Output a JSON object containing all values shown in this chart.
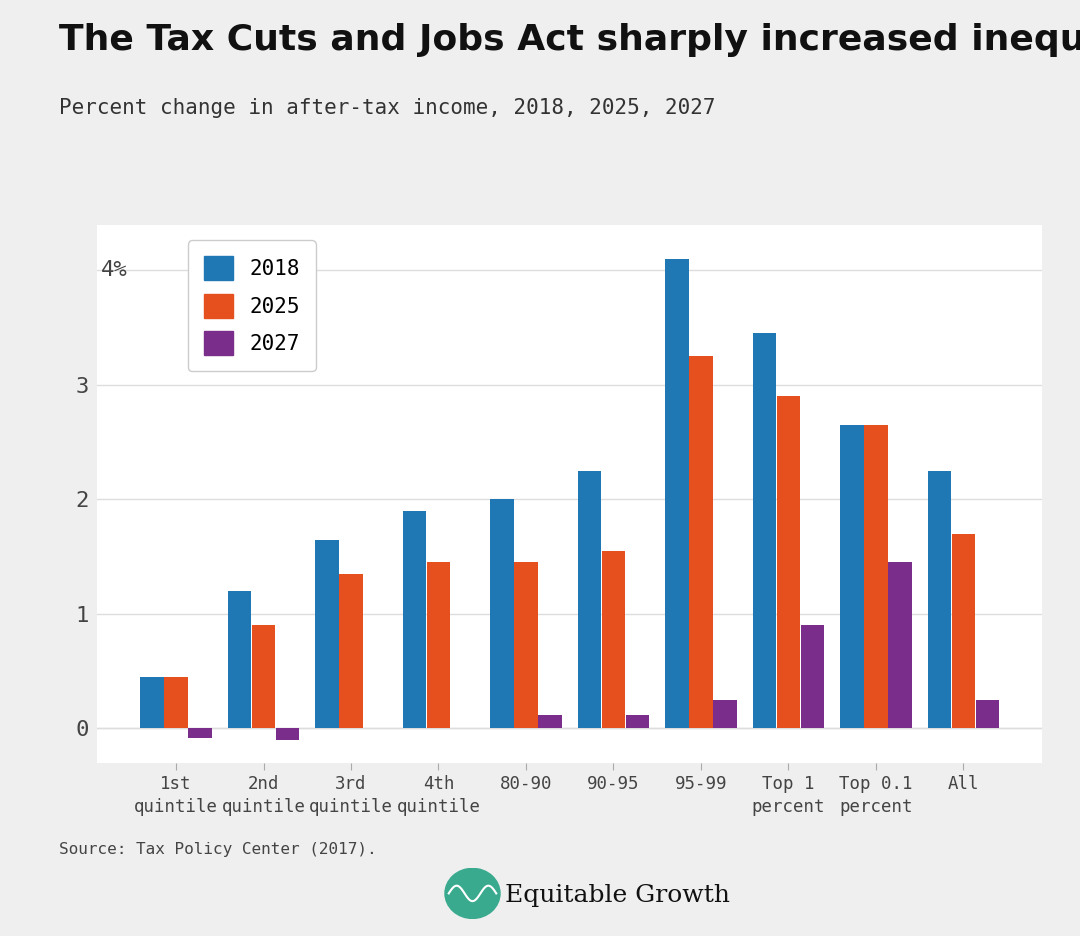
{
  "title": "The Tax Cuts and Jobs Act sharply increased inequality",
  "subtitle": "Percent change in after-tax income, 2018, 2025, 2027",
  "source": "Source: Tax Policy Center (2017).",
  "categories": [
    "1st\nquintile",
    "2nd\nquintile",
    "3rd\nquintile",
    "4th\nquintile",
    "80-90",
    "90-95",
    "95-99",
    "Top 1\npercent",
    "Top 0.1\npercent",
    "All"
  ],
  "values_2018": [
    0.45,
    1.2,
    1.65,
    1.9,
    2.0,
    2.25,
    4.1,
    3.45,
    2.65,
    2.25
  ],
  "values_2025": [
    0.45,
    0.9,
    1.35,
    1.45,
    1.45,
    1.55,
    3.25,
    2.9,
    2.65,
    1.7
  ],
  "values_2027": [
    -0.08,
    -0.1,
    0.0,
    0.0,
    0.12,
    0.12,
    0.25,
    0.9,
    1.45,
    0.25
  ],
  "color_2018": "#1f77b4",
  "color_2025": "#e5501e",
  "color_2027": "#7b2d8b",
  "background_color": "#efefef",
  "plot_bg_color": "#ffffff",
  "title_fontsize": 26,
  "subtitle_fontsize": 15,
  "ylim": [
    -0.3,
    4.4
  ],
  "yticks": [
    0,
    1,
    2,
    3
  ],
  "logo_color": "#3aaa8f"
}
